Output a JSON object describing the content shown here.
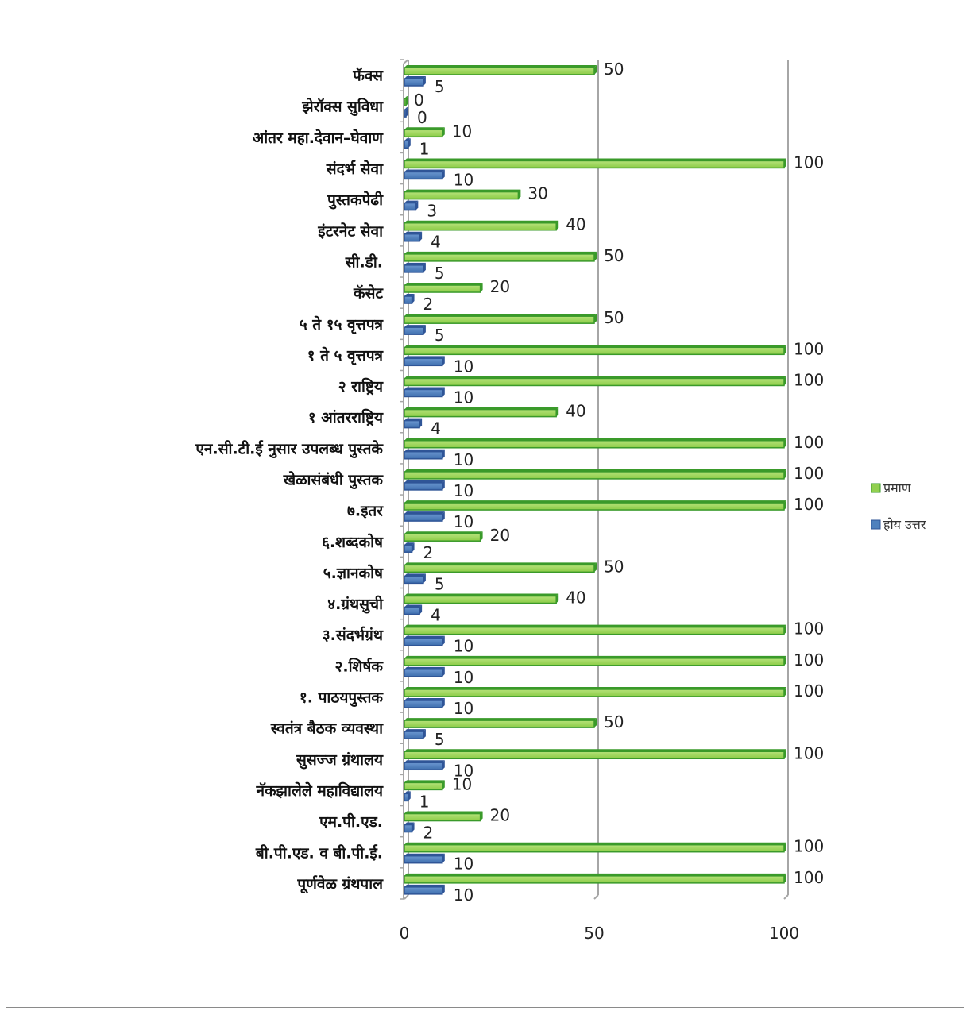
{
  "chart_data": {
    "type": "bar",
    "orientation": "horizontal",
    "categories": [
      "पूर्णवेळ ग्रंथपाल",
      "बी.पी.एड. व बी.पी.ई.",
      "एम.पी.एड.",
      "नॅकझालेले महाविद्यालय",
      "सुसज्ज ग्रंथालय",
      "स्वतंत्र बैठक व्यवस्था",
      "१. पाठयपुस्तक",
      "२.शिर्षक",
      "३.संदर्भग्रंथ",
      "४.ग्रंथसुची",
      "५.ज्ञानकोष",
      "६.शब्दकोष",
      "७.इतर",
      "खेळासंबंधी पुस्तक",
      "एन.सी.टी.ई नुसार उपलब्ध पुस्तके",
      "१ आंतरराष्ट्रिय",
      "२ राष्ट्रिय",
      "१ ते ५ वृत्तपत्र",
      "५ ते १५ वृत्तपत्र",
      "कॅसेट",
      "सी.डी.",
      "इंटरनेट सेवा",
      "पुस्तकपेढी",
      "संदर्भ सेवा",
      "आंतर महा.देवान–घेवाण",
      "झेरॉक्स सुविधा",
      "फॅक्स"
    ],
    "series": [
      {
        "name": "होय उत्तर",
        "color": "#4f81bd",
        "values": [
          10,
          10,
          2,
          1,
          10,
          5,
          10,
          10,
          10,
          4,
          5,
          2,
          10,
          10,
          10,
          4,
          10,
          10,
          5,
          2,
          5,
          4,
          3,
          10,
          1,
          0,
          5
        ]
      },
      {
        "name": "प्रमाण",
        "color": "#92d050",
        "values": [
          100,
          100,
          20,
          10,
          100,
          50,
          100,
          100,
          100,
          40,
          50,
          20,
          100,
          100,
          100,
          40,
          100,
          100,
          50,
          20,
          50,
          40,
          30,
          100,
          10,
          0,
          50
        ]
      }
    ],
    "x_ticks": [
      "0",
      "50",
      "100"
    ],
    "xlim": [
      0,
      100
    ],
    "grid": "vertical",
    "legend_position": "right"
  }
}
